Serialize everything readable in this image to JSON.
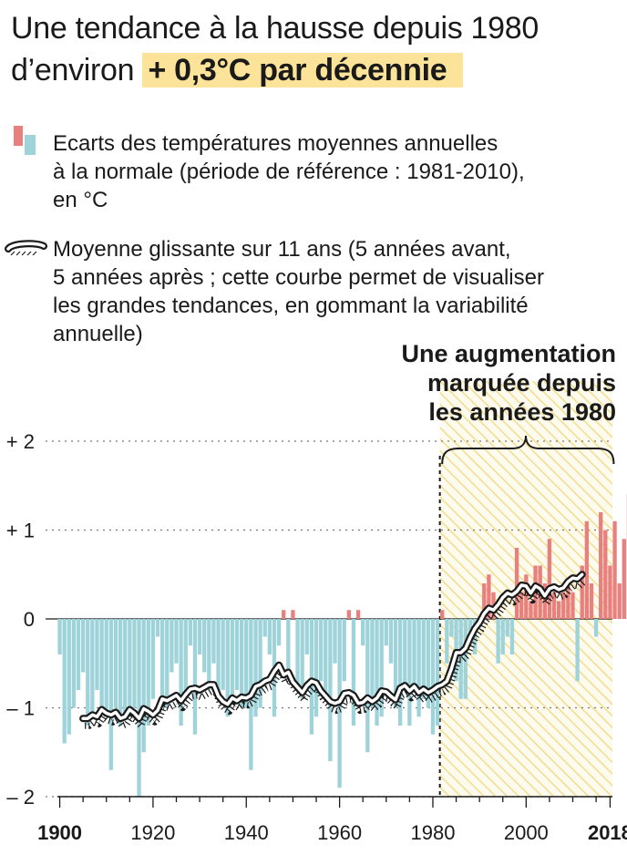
{
  "title": {
    "line1": "Une tendance à la hausse depuis 1980",
    "line2_prefix": "d’environ",
    "line2_highlight": "+ 0,3°C par décennie"
  },
  "legend": {
    "bars": [
      "Ecarts des températures moyennes annuelles",
      "à la normale (période de référence : 1981-2010),",
      "en °C"
    ],
    "curve": [
      "Moyenne glissante sur 11 ans (5 années avant,",
      "5 années après ; cette courbe permet de visualiser",
      "les grandes tendances, en gommant la variabilité",
      "annuelle)"
    ]
  },
  "colors": {
    "positive": "#e8807e",
    "negative": "#9ed3da",
    "highlight_band": "#f5e6a0",
    "curve": "#1a1a1a"
  },
  "chart_data": {
    "type": "bar",
    "title": "Une tendance à la hausse depuis 1980",
    "ylim": [
      -2,
      2
    ],
    "yticks": [
      2,
      1,
      0,
      -1,
      -2
    ],
    "ytick_labels": [
      "+ 2",
      "+ 1",
      "0",
      "– 1",
      "– 2"
    ],
    "xlim": [
      1899.5,
      2018.5
    ],
    "xticks": [
      1900,
      1920,
      1940,
      1960,
      1980,
      2000,
      2018
    ],
    "xtick_labels": [
      "1900",
      "1920",
      "1940",
      "1960",
      "1980",
      "2000",
      "2018"
    ],
    "grid": "dotted horizontal at each y tick",
    "annotation": {
      "lines": [
        "Une augmentation",
        "marquée depuis",
        "les années 1980"
      ],
      "from_year": 1982,
      "to_year": 2018
    },
    "anomalies": {
      "years_start": 1900,
      "values": [
        -0.4,
        -1.4,
        -1.3,
        -1.0,
        -0.8,
        -0.6,
        -1.2,
        -1.1,
        -0.8,
        -1.0,
        -1.1,
        -1.7,
        -1.0,
        -1.2,
        -1.1,
        -1.1,
        -1.0,
        -2.0,
        -1.5,
        -1.2,
        -0.9,
        -0.2,
        -1.0,
        -1.0,
        -0.6,
        -0.5,
        -1.2,
        -0.9,
        -0.3,
        -1.3,
        -0.4,
        -0.6,
        -0.8,
        -0.5,
        -0.9,
        -0.8,
        -1.1,
        -0.9,
        -0.8,
        -1.0,
        -1.0,
        -1.7,
        -1.1,
        -1.0,
        -0.2,
        -0.4,
        -1.1,
        -0.3,
        0.1,
        -0.6,
        0.1,
        -0.8,
        -0.9,
        -0.4,
        -1.3,
        -1.1,
        -0.7,
        -0.9,
        -1.6,
        -0.5,
        -1.9,
        -0.7,
        0.1,
        -1.2,
        0.1,
        -0.3,
        -1.5,
        -1.0,
        -1.2,
        -1.1,
        -0.3,
        -0.5,
        -1.0,
        -1.2,
        -0.8,
        -1.2,
        -0.8,
        -1.1,
        -0.9,
        -1.0,
        -1.3,
        -1.2,
        0.1,
        -0.5,
        -0.2,
        -0.7,
        -0.9,
        -0.9,
        -0.3,
        -0.4,
        -0.1,
        0.4,
        0.5,
        0.3,
        -0.5,
        -0.4,
        -0.2,
        -0.4,
        0.8,
        0.3,
        0.5,
        0.2,
        0.6,
        0.6,
        0.4,
        0.9,
        0.3,
        0.2,
        0.3,
        0.4,
        0.3,
        -0.7,
        0.6,
        1.1,
        0.4,
        -0.2,
        1.2,
        1.0,
        0.6,
        1.1,
        0.4,
        0.9,
        1.4
      ],
      "years_end": 2018
    },
    "moving_average": {
      "x_start": 1905,
      "values": [
        -1.12,
        -1.12,
        -1.08,
        -1.1,
        -1.02,
        -1.06,
        -1.08,
        -1.05,
        -1.12,
        -1.1,
        -1.02,
        -1.06,
        -1.12,
        -1.01,
        -1.04,
        -1.08,
        -1.03,
        -0.9,
        -0.92,
        -0.89,
        -0.86,
        -0.92,
        -0.85,
        -0.79,
        -0.78,
        -0.8,
        -0.77,
        -0.74,
        -0.74,
        -0.87,
        -0.93,
        -0.96,
        -0.89,
        -0.92,
        -0.88,
        -0.89,
        -0.86,
        -0.76,
        -0.74,
        -0.7,
        -0.68,
        -0.59,
        -0.52,
        -0.63,
        -0.6,
        -0.71,
        -0.77,
        -0.83,
        -0.75,
        -0.7,
        -0.72,
        -0.81,
        -0.87,
        -0.93,
        -0.95,
        -0.93,
        -0.84,
        -0.83,
        -0.86,
        -0.95,
        -0.94,
        -0.89,
        -0.93,
        -0.89,
        -0.81,
        -0.82,
        -0.87,
        -0.91,
        -0.78,
        -0.75,
        -0.81,
        -0.76,
        -0.83,
        -0.79,
        -0.83,
        -0.8,
        -0.76,
        -0.74,
        -0.7,
        -0.56,
        -0.38,
        -0.38,
        -0.33,
        -0.21,
        -0.11,
        -0.04,
        0.06,
        0.12,
        0.1,
        0.16,
        0.24,
        0.29,
        0.27,
        0.31,
        0.38,
        0.37,
        0.29,
        0.37,
        0.34,
        0.26,
        0.34,
        0.36,
        0.33,
        0.35,
        0.42,
        0.46,
        0.45,
        0.5
      ]
    }
  }
}
